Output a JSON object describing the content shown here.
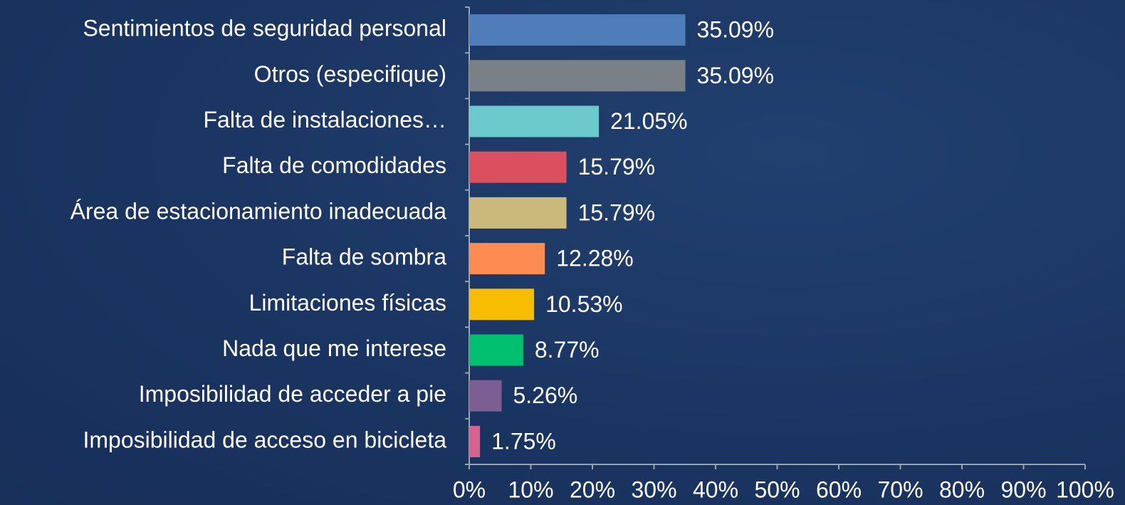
{
  "chart_data": {
    "type": "bar",
    "orientation": "horizontal",
    "categories": [
      "Sentimientos de seguridad personal",
      "Otros (especifique)",
      "Falta de instalaciones…",
      "Falta de comodidades",
      "Área de estacionamiento inadecuada",
      "Falta de sombra",
      "Limitaciones físicas",
      "Nada que me interese",
      "Imposibilidad de acceder a pie",
      "Imposibilidad de acceso en bicicleta"
    ],
    "values": [
      35.09,
      35.09,
      21.05,
      15.79,
      15.79,
      12.28,
      10.53,
      8.77,
      5.26,
      1.75
    ],
    "value_labels": [
      "35.09%",
      "35.09%",
      "21.05%",
      "15.79%",
      "15.79%",
      "12.28%",
      "10.53%",
      "8.77%",
      "5.26%",
      "1.75%"
    ],
    "colors": [
      "#4f7dba",
      "#7a8088",
      "#6cc9cc",
      "#dc4f5e",
      "#cbb97c",
      "#fd8b52",
      "#f8bd00",
      "#00bf6f",
      "#7c5e92",
      "#d9608f"
    ],
    "xlim": [
      0,
      100
    ],
    "xticks": [
      {
        "value": 0,
        "label": "0%"
      },
      {
        "value": 10,
        "label": "10%"
      },
      {
        "value": 20,
        "label": "20%"
      },
      {
        "value": 30,
        "label": "30%"
      },
      {
        "value": 40,
        "label": "40%"
      },
      {
        "value": 50,
        "label": "50%"
      },
      {
        "value": 60,
        "label": "60%"
      },
      {
        "value": 70,
        "label": "70%"
      },
      {
        "value": 80,
        "label": "80%"
      },
      {
        "value": 90,
        "label": "90%"
      },
      {
        "value": 100,
        "label": "100%"
      }
    ]
  }
}
